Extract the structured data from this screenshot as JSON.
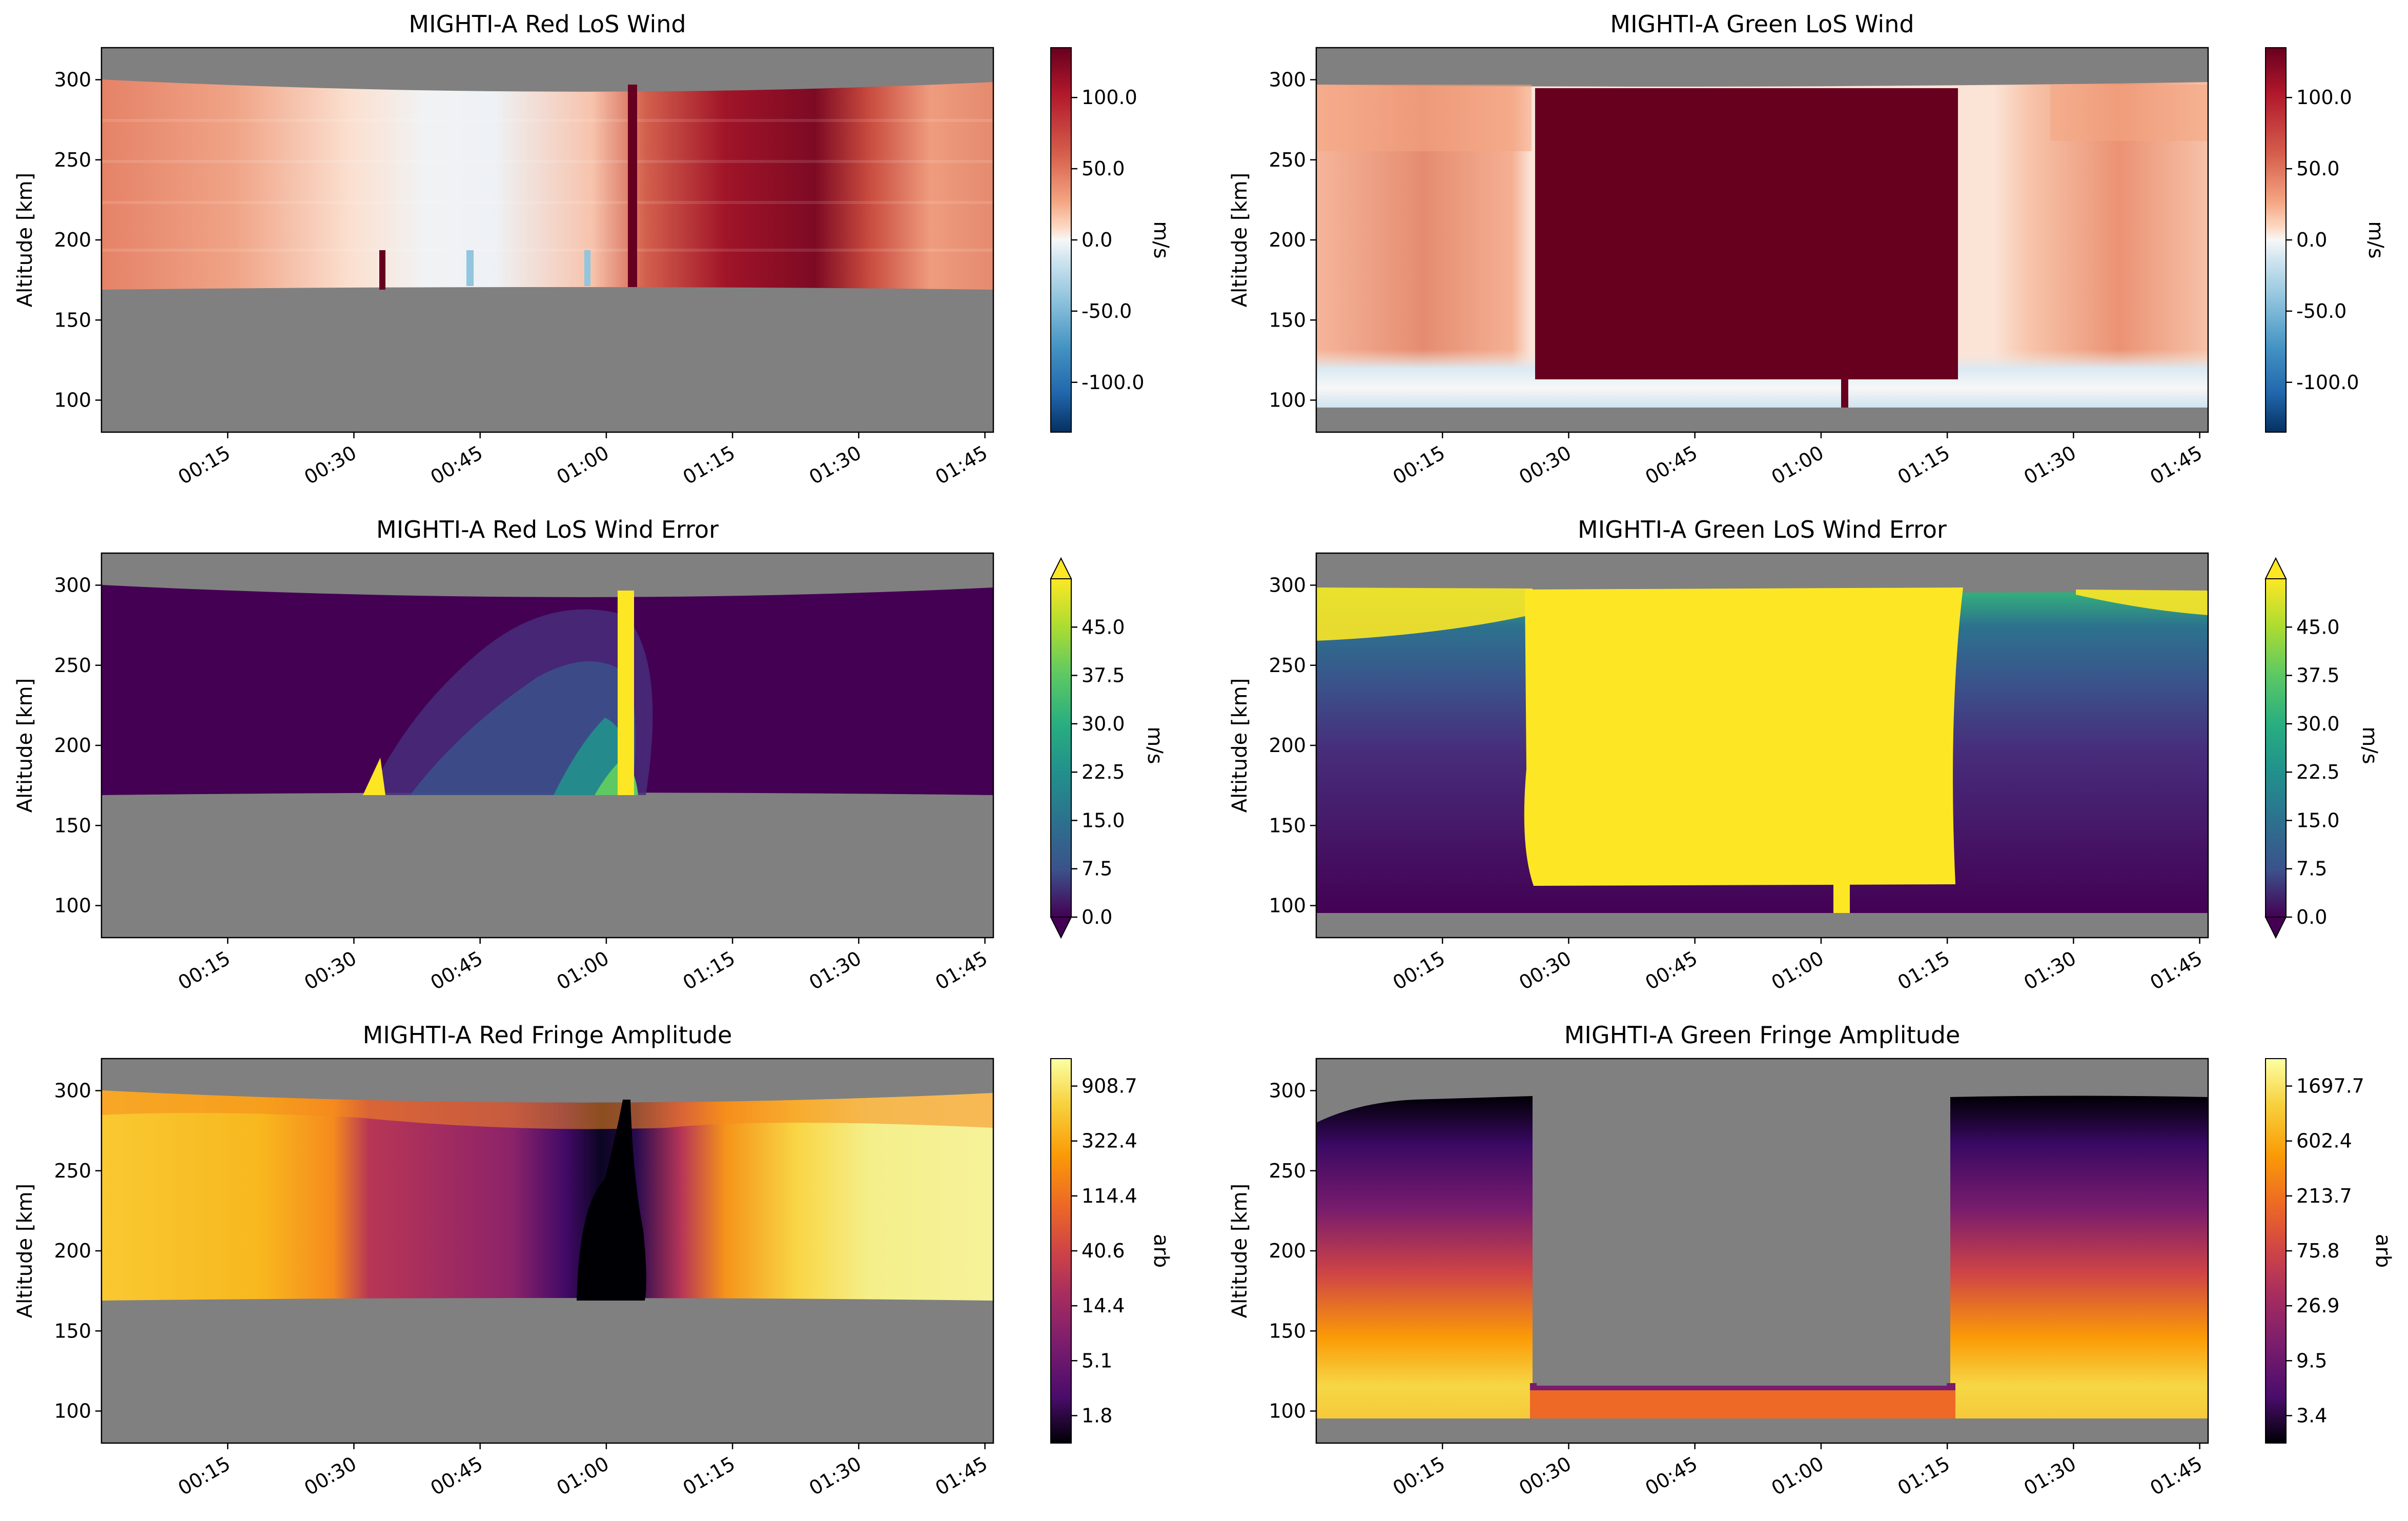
{
  "figure": {
    "time_ticks": [
      "00:15",
      "00:30",
      "00:45",
      "01:00",
      "01:15",
      "01:30",
      "01:45"
    ],
    "altitude_ticks": [
      100,
      150,
      200,
      250,
      300
    ],
    "ylabel": "Altitude [km]",
    "background_color": "#808080"
  },
  "chart_data": [
    {
      "id": "red-los-wind",
      "type": "heatmap",
      "title": "MIGHTI-A Red LoS Wind",
      "ylabel": "Altitude [km]",
      "colormap": "RdBu_r",
      "colorbar": {
        "label": "m/s",
        "ticks": [
          "100.0",
          "50.0",
          "0.0",
          "-50.0",
          "-100.0"
        ],
        "range": [
          -135,
          135
        ]
      },
      "xlim": [
        "00:00",
        "01:46"
      ],
      "ylim": [
        80,
        320
      ],
      "valid_altitude": {
        "bottom": 168,
        "top": 298
      },
      "approx_wind_ms": {
        "times": [
          "00:00",
          "00:15",
          "00:30",
          "00:45",
          "01:00",
          "01:05",
          "01:15",
          "01:25",
          "01:35",
          "01:45"
        ],
        "values": [
          50,
          40,
          10,
          5,
          20,
          60,
          110,
          125,
          70,
          60
        ]
      }
    },
    {
      "id": "green-los-wind",
      "type": "heatmap",
      "title": "MIGHTI-A Green LoS Wind",
      "ylabel": "Altitude [km]",
      "colormap": "RdBu_r",
      "colorbar": {
        "label": "m/s",
        "ticks": [
          "100.0",
          "50.0",
          "0.0",
          "-50.0",
          "-100.0"
        ],
        "range": [
          -135,
          135
        ]
      },
      "xlim": [
        "00:00",
        "01:46"
      ],
      "ylim": [
        80,
        320
      ],
      "valid_altitude": {
        "bottom": 95,
        "top": 297
      },
      "saturated_block": {
        "start": "00:26",
        "end": "01:15",
        "bottom": 112,
        "top": 295
      }
    },
    {
      "id": "red-los-wind-error",
      "type": "heatmap",
      "title": "MIGHTI-A Red LoS Wind Error",
      "ylabel": "Altitude [km]",
      "colormap": "viridis",
      "colorbar": {
        "label": "m/s",
        "ticks": [
          "45.0",
          "37.5",
          "30.0",
          "22.5",
          "15.0",
          "7.5",
          "0.0"
        ],
        "range": [
          0,
          52.5
        ],
        "extend": "both"
      },
      "xlim": [
        "00:00",
        "01:46"
      ],
      "ylim": [
        80,
        320
      ],
      "valid_altitude": {
        "bottom": 168,
        "top": 298
      },
      "high_error_column": {
        "start": "01:02",
        "end": "01:04"
      }
    },
    {
      "id": "green-los-wind-error",
      "type": "heatmap",
      "title": "MIGHTI-A Green LoS Wind Error",
      "ylabel": "Altitude [km]",
      "colormap": "viridis",
      "colorbar": {
        "label": "m/s",
        "ticks": [
          "45.0",
          "37.5",
          "30.0",
          "22.5",
          "15.0",
          "7.5",
          "0.0"
        ],
        "range": [
          0,
          52.5
        ],
        "extend": "both"
      },
      "xlim": [
        "00:00",
        "01:46"
      ],
      "ylim": [
        80,
        320
      ],
      "valid_altitude": {
        "bottom": 95,
        "top": 297
      },
      "saturated_block": {
        "start": "00:25",
        "end": "01:15",
        "bottom": 107,
        "top": 297
      }
    },
    {
      "id": "red-fringe-amplitude",
      "type": "heatmap",
      "title": "MIGHTI-A Red Fringe Amplitude",
      "ylabel": "Altitude [km]",
      "colormap": "inferno",
      "colorbar": {
        "label": "arb",
        "ticks": [
          "908.7",
          "322.4",
          "114.4",
          "40.6",
          "14.4",
          "5.1",
          "1.8"
        ],
        "scale": "log"
      },
      "xlim": [
        "00:00",
        "01:46"
      ],
      "ylim": [
        80,
        320
      ],
      "valid_altitude": {
        "bottom": 168,
        "top": 298
      },
      "low_amplitude_window": {
        "start": "00:30",
        "end": "01:07"
      }
    },
    {
      "id": "green-fringe-amplitude",
      "type": "heatmap",
      "title": "MIGHTI-A Green Fringe Amplitude",
      "ylabel": "Altitude [km]",
      "colormap": "inferno",
      "colorbar": {
        "label": "arb",
        "ticks": [
          "1697.7",
          "602.4",
          "213.7",
          "75.8",
          "26.9",
          "9.5",
          "3.4"
        ],
        "scale": "log"
      },
      "xlim": [
        "00:00",
        "01:46"
      ],
      "ylim": [
        80,
        320
      ],
      "valid_altitude": {
        "bottom": 95,
        "top": 297
      },
      "missing_block": {
        "start": "00:26",
        "end": "01:15",
        "bottom": 112,
        "top": 297
      }
    }
  ]
}
